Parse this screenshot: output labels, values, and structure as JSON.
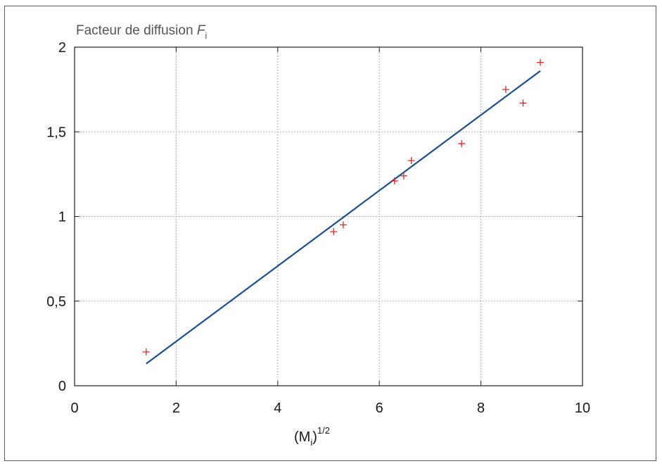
{
  "chart_data": {
    "type": "scatter",
    "title": {
      "main": "Facteur de diffusion ",
      "var": "F",
      "sub": "i"
    },
    "xlabel": {
      "open": "(M",
      "sub": "i",
      "close": ")",
      "sup": "1/2"
    },
    "ylabel": "",
    "xlim": [
      0,
      10
    ],
    "ylim": [
      0,
      2
    ],
    "x_ticks": [
      0,
      2,
      4,
      6,
      8,
      10
    ],
    "x_tick_labels": [
      "0",
      "2",
      "4",
      "6",
      "8",
      "10"
    ],
    "y_ticks": [
      0,
      0.5,
      1,
      1.5,
      2
    ],
    "y_tick_labels": [
      "0",
      "0,5",
      "1",
      "1,5",
      "2"
    ],
    "grid": true,
    "series": [
      {
        "kind": "points",
        "marker": "+",
        "color": "#d42a2a",
        "points": [
          {
            "x": 1.41,
            "y": 0.2
          },
          {
            "x": 5.1,
            "y": 0.91
          },
          {
            "x": 5.29,
            "y": 0.95
          },
          {
            "x": 6.3,
            "y": 1.21
          },
          {
            "x": 6.48,
            "y": 1.24
          },
          {
            "x": 6.63,
            "y": 1.33
          },
          {
            "x": 7.62,
            "y": 1.43
          },
          {
            "x": 8.49,
            "y": 1.75
          },
          {
            "x": 8.83,
            "y": 1.67
          },
          {
            "x": 9.17,
            "y": 1.91
          }
        ]
      },
      {
        "kind": "fit-line",
        "color": "#1f4e8c",
        "points": [
          {
            "x": 1.41,
            "y": 0.13
          },
          {
            "x": 9.17,
            "y": 1.86
          }
        ]
      }
    ]
  }
}
